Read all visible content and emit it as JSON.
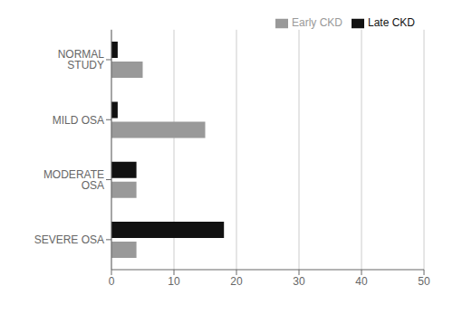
{
  "chart_data": {
    "type": "bar",
    "orientation": "horizontal",
    "categories": [
      "NORMAL STUDY",
      "MILD OSA",
      "MODERATE OSA",
      "SEVERE OSA"
    ],
    "series": [
      {
        "name": "Late CKD",
        "color": "#111111",
        "values": [
          1,
          1,
          4,
          18
        ]
      },
      {
        "name": "Early CKD",
        "color": "#999999",
        "values": [
          5,
          15,
          4,
          4
        ]
      }
    ],
    "xlim": [
      0,
      50
    ],
    "xticks": [
      0,
      10,
      20,
      30,
      40,
      50
    ],
    "grid": true,
    "legend": "upper right"
  }
}
